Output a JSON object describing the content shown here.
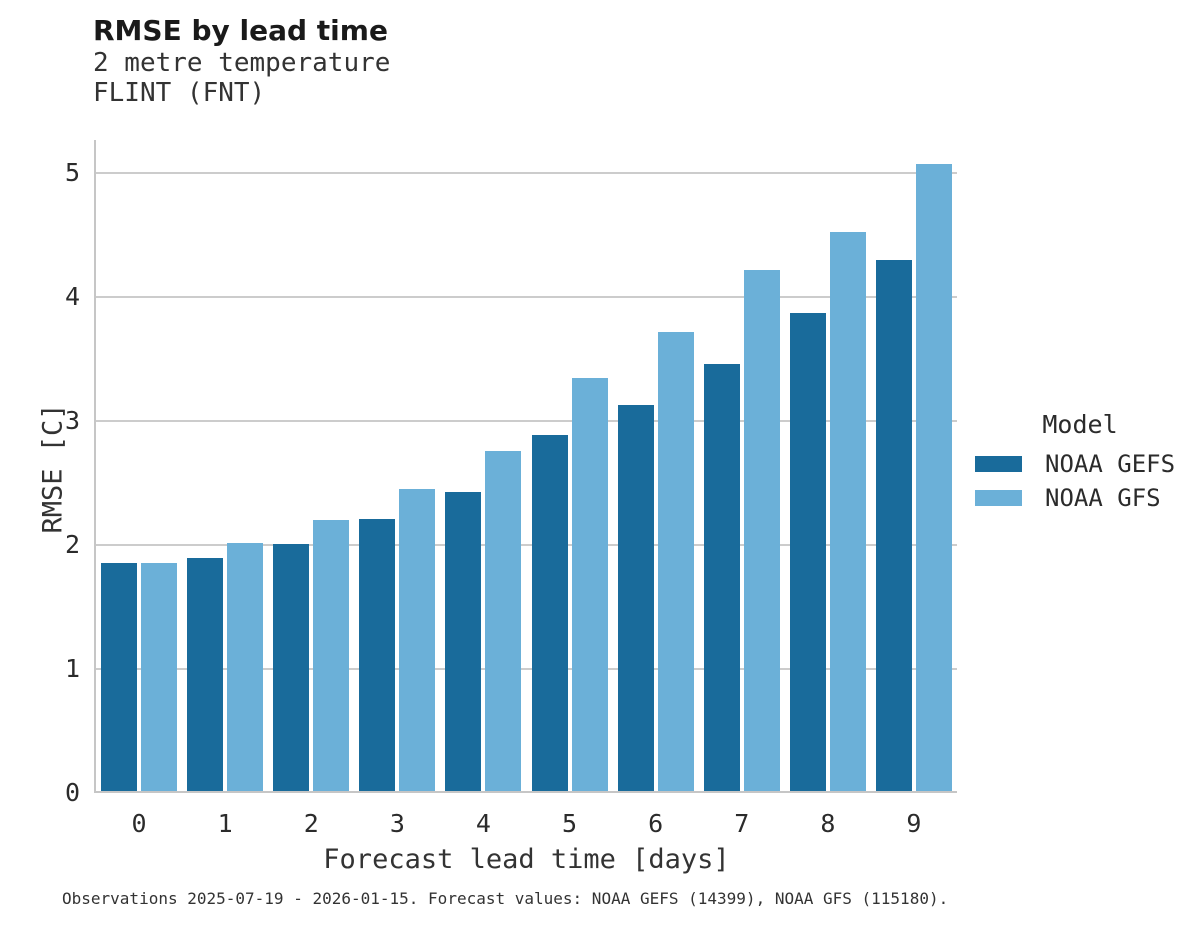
{
  "header": {
    "title": "RMSE by lead time",
    "subtitle_line1": "2 metre temperature",
    "subtitle_line2": "FLINT (FNT)"
  },
  "chart_data": {
    "type": "bar",
    "title": "RMSE by lead time",
    "subtitle": [
      "2 metre temperature",
      "FLINT (FNT)"
    ],
    "categories": [
      "0",
      "1",
      "2",
      "3",
      "4",
      "5",
      "6",
      "7",
      "8",
      "9"
    ],
    "series": [
      {
        "name": "NOAA GEFS",
        "color": "#196B9B",
        "values": [
          1.86,
          1.9,
          2.01,
          2.21,
          2.43,
          2.89,
          3.13,
          3.46,
          3.87,
          4.3
        ]
      },
      {
        "name": "NOAA GFS",
        "color": "#6BB0D8",
        "values": [
          1.86,
          2.02,
          2.2,
          2.45,
          2.76,
          3.35,
          3.72,
          4.22,
          4.53,
          5.08
        ]
      }
    ],
    "xlabel": "Forecast lead time [days]",
    "ylabel": "RMSE [C]",
    "ylim": [
      0,
      5.27
    ],
    "yticks": [
      0,
      1,
      2,
      3,
      4,
      5
    ],
    "grid": "horizontal",
    "gridline_color": "#cccccc",
    "legend_title": "Model",
    "legend_position": "right"
  },
  "footer": {
    "note": "Observations 2025-07-19 - 2026-01-15. Forecast values: NOAA GEFS (14399), NOAA GFS (115180)."
  }
}
